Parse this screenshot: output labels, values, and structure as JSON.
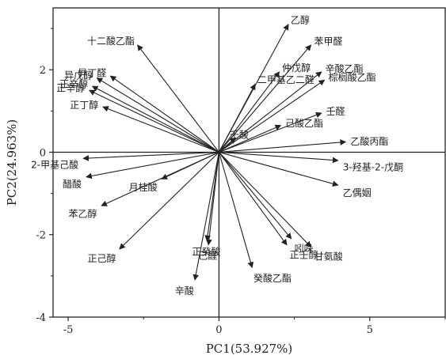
{
  "chart_data": {
    "type": "scatter",
    "subtype": "pca-loading-vectors",
    "xlabel": "PC1(53.927%)",
    "ylabel": "PC2(24.963%)",
    "xlim": [
      -5.5,
      7.5
    ],
    "ylim": [
      -4,
      3.5
    ],
    "xticks": [
      -5,
      0,
      5
    ],
    "yticks": [
      -4,
      -2,
      0,
      2
    ],
    "xtick_labels": [
      "-5",
      "0",
      "5"
    ],
    "ytick_labels": [
      "-4",
      "-2",
      "0",
      "2"
    ],
    "grid": false,
    "points": [
      {
        "label": "乙醇",
        "x": 2.3,
        "y": 3.1
      },
      {
        "label": "苯甲醛",
        "x": 3.05,
        "y": 2.6
      },
      {
        "label": "仲戊醇",
        "x": 2.0,
        "y": 1.95
      },
      {
        "label": "辛酸乙酯",
        "x": 3.4,
        "y": 1.95
      },
      {
        "label": "棕榈酸乙酯",
        "x": 3.5,
        "y": 1.75
      },
      {
        "label": "二甲基乙二醛",
        "x": 1.2,
        "y": 1.65
      },
      {
        "label": "壬醛",
        "x": 3.4,
        "y": 0.95
      },
      {
        "label": "己酸乙酯",
        "x": 2.05,
        "y": 0.65
      },
      {
        "label": "壬酸",
        "x": 0.55,
        "y": 0.35
      },
      {
        "label": "乙酸丙酯",
        "x": 4.2,
        "y": 0.25
      },
      {
        "label": "3-羟基-2-戊酮",
        "x": 3.95,
        "y": -0.2
      },
      {
        "label": "乙偶姻",
        "x": 3.95,
        "y": -0.8
      },
      {
        "label": "吲哚",
        "x": 2.4,
        "y": -2.1
      },
      {
        "label": "甘氨酸",
        "x": 3.05,
        "y": -2.3
      },
      {
        "label": "正壬醇",
        "x": 2.25,
        "y": -2.25
      },
      {
        "label": "癸酸乙酯",
        "x": 1.1,
        "y": -2.8
      },
      {
        "label": "正癸酸",
        "x": -0.4,
        "y": -2.15
      },
      {
        "label": "己醛",
        "x": -0.35,
        "y": -2.25
      },
      {
        "label": "辛酸",
        "x": -0.8,
        "y": -3.1
      },
      {
        "label": "正己醇",
        "x": -3.3,
        "y": -2.35
      },
      {
        "label": "苯乙醇",
        "x": -3.9,
        "y": -1.3
      },
      {
        "label": "月桂酸",
        "x": -1.9,
        "y": -0.65
      },
      {
        "label": "醋酸",
        "x": -4.4,
        "y": -0.6
      },
      {
        "label": "2-甲基己酸",
        "x": -4.5,
        "y": -0.15
      },
      {
        "label": "正丁醇",
        "x": -3.85,
        "y": 1.1
      },
      {
        "label": "正辛醇",
        "x": -4.3,
        "y": 1.5
      },
      {
        "label": "正辛醇",
        "x": -4.2,
        "y": 1.6
      },
      {
        "label": "异戊醇",
        "x": -4.05,
        "y": 1.8
      },
      {
        "label": "异丁醛",
        "x": -3.6,
        "y": 1.85
      },
      {
        "label": "十二酸乙酯",
        "x": -2.7,
        "y": 2.6
      }
    ]
  }
}
